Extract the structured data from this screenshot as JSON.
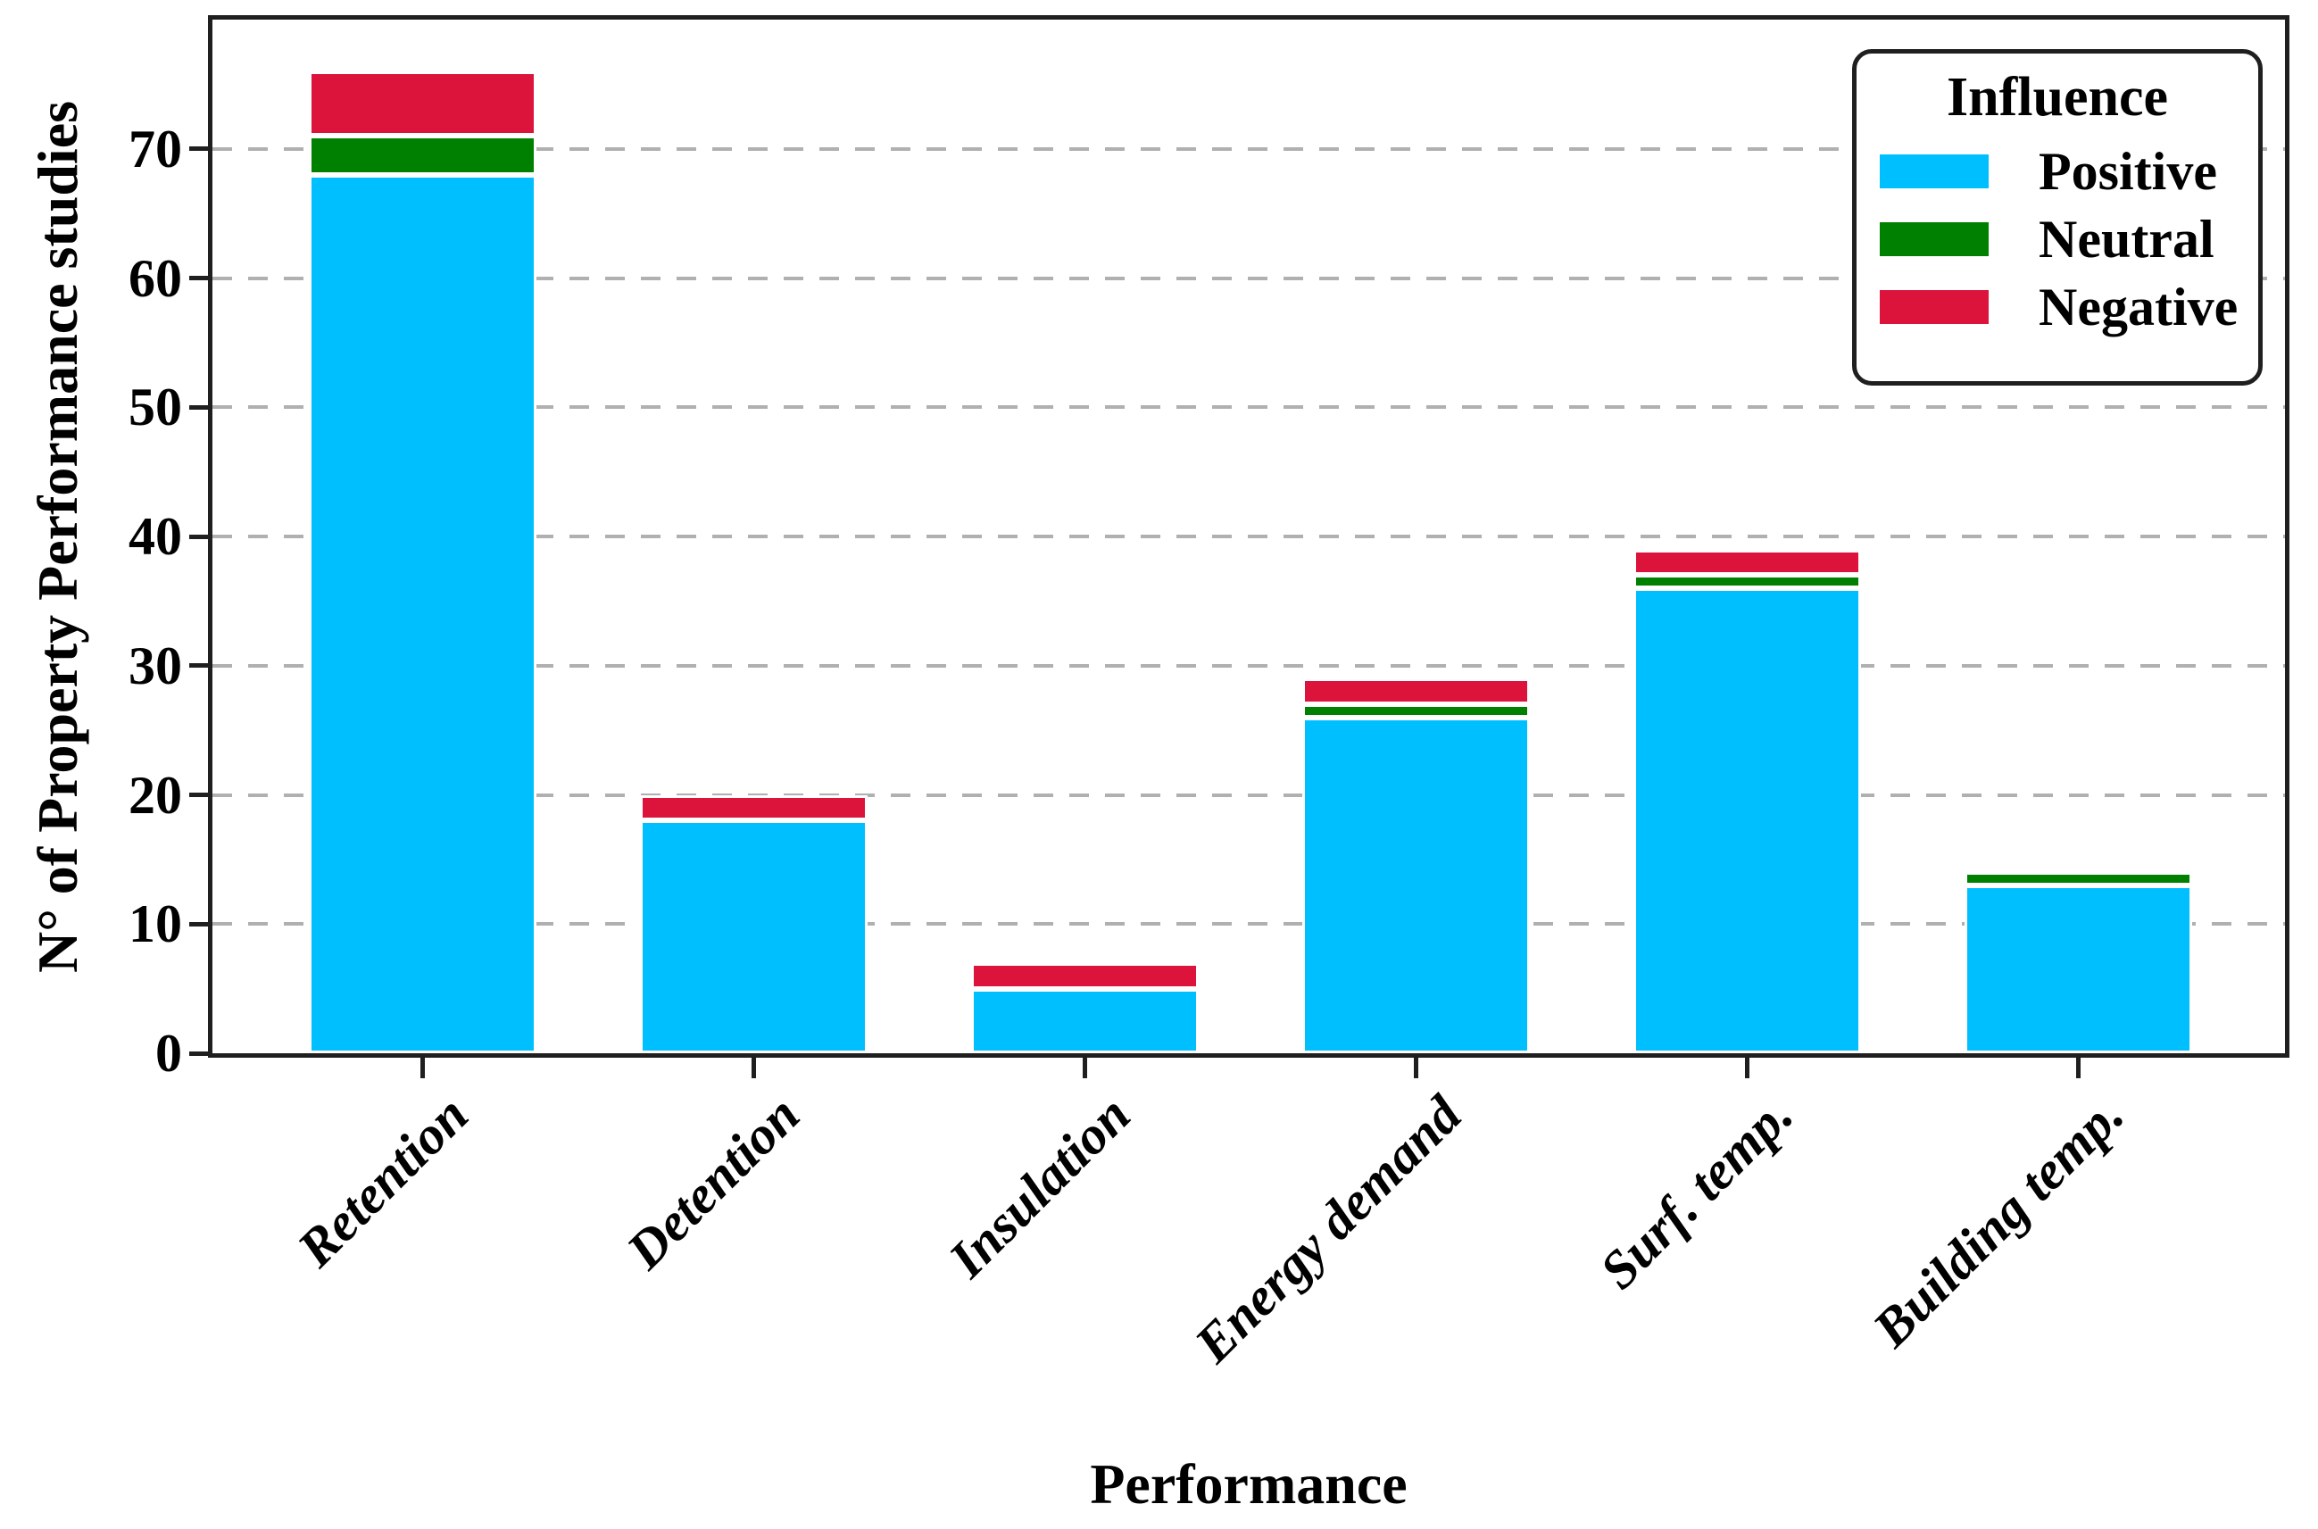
{
  "chart_data": {
    "type": "bar",
    "stacked": true,
    "xlabel": "Performance",
    "ylabel": "N° of Property Performance studies",
    "categories": [
      "Retention",
      "Detention",
      "Insulation",
      "Energy demand",
      "Surf. temp.",
      "Building temp."
    ],
    "series": [
      {
        "name": "Positive",
        "color": "#00BFFF",
        "values": [
          68,
          18,
          5,
          26,
          36,
          13
        ]
      },
      {
        "name": "Neutral",
        "color": "#008000",
        "values": [
          3,
          0,
          0,
          1,
          1,
          1
        ]
      },
      {
        "name": "Negative",
        "color": "#DC143C",
        "values": [
          5,
          2,
          2,
          2,
          2,
          0
        ]
      }
    ],
    "ylim": [
      0,
      80
    ],
    "yticks": [
      0,
      10,
      20,
      30,
      40,
      50,
      60,
      70
    ],
    "grid": "horizontal-dashed",
    "legend": {
      "title": "Influence",
      "position": "upper-right"
    }
  },
  "styles": {
    "background": "#ffffff",
    "axis_color": "#1f1f1f",
    "grid_color": "#b0b0b0",
    "bar_edge_color": "#ffffff"
  }
}
